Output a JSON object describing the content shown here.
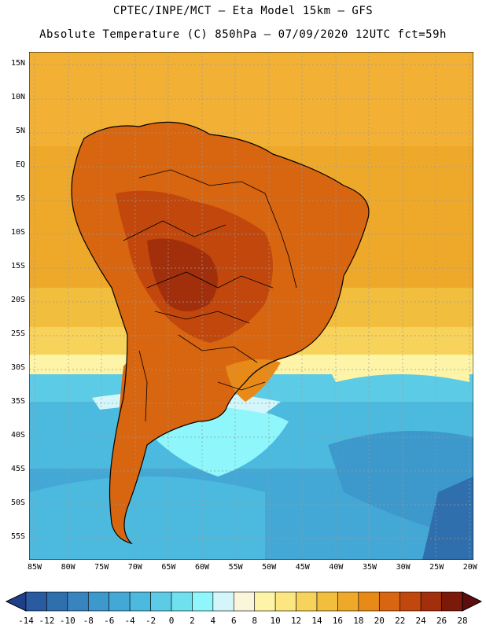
{
  "header": {
    "line1": "CPTEC/INPE/MCT –  Eta Model 15km – GFS",
    "line2": "Absolute Temperature (C) 850hPa – 07/09/2020 12UTC fct=59h"
  },
  "map": {
    "lat_labels": [
      "15N",
      "10N",
      "5N",
      "EQ",
      "5S",
      "10S",
      "15S",
      "20S",
      "25S",
      "30S",
      "35S",
      "40S",
      "45S",
      "50S",
      "55S"
    ],
    "lon_labels": [
      "85W",
      "80W",
      "75W",
      "70W",
      "65W",
      "60W",
      "55W",
      "50W",
      "45W",
      "40W",
      "35W",
      "30W",
      "25W",
      "20W"
    ],
    "region": "South America"
  },
  "legend": {
    "ticks": [
      "-14",
      "-12",
      "-10",
      "-8",
      "-6",
      "-4",
      "-2",
      "0",
      "2",
      "4",
      "6",
      "8",
      "10",
      "12",
      "14",
      "16",
      "18",
      "20",
      "22",
      "24",
      "26",
      "28"
    ],
    "colors": [
      "#1f3f8a",
      "#2a5aa0",
      "#2f6fae",
      "#3784be",
      "#3d98cc",
      "#44a8d6",
      "#4cbade",
      "#5ccce6",
      "#6fe0ee",
      "#8ff6fb",
      "#d3f6fb",
      "#fbf5dc",
      "#fdf4a8",
      "#fbe680",
      "#f7d35c",
      "#f2be3e",
      "#eea92a",
      "#e78a18",
      "#d8650f",
      "#c1470d",
      "#a22f0c",
      "#7c1a0a",
      "#5c0e0e"
    ]
  }
}
